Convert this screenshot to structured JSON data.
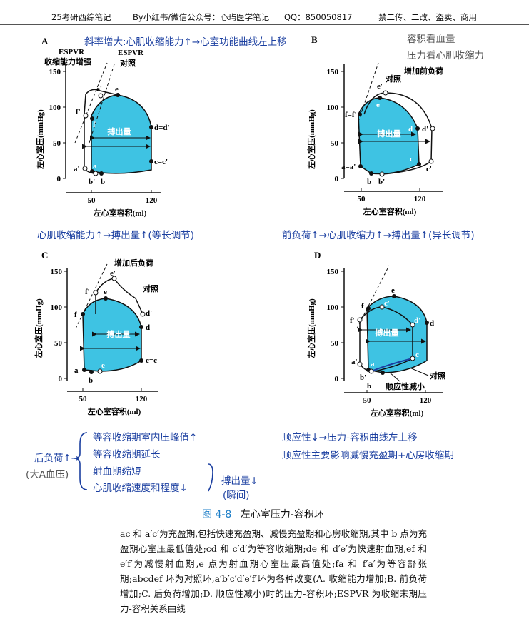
{
  "header": {
    "book": "25考研西综笔记",
    "author": "By小红书/微信公众号：心玙医学笔记",
    "qq": "QQ：850050817",
    "rights": "禁二传、二改、盗卖、商用"
  },
  "notes": {
    "a_title": "斜率增大:心肌收缩能力↑→心室功能曲线左上移",
    "b_title_1": "容积看血量",
    "b_title_2": "压力看心肌收缩力",
    "a_summary": "心肌收缩能力↑→搏出量↑(等长调节)",
    "b_summary": "前负荷↑→心肌收缩力↑→搏出量↑(异长调节)",
    "c_left_1": "后负荷↑→",
    "c_left_2": "(大A血压)",
    "c_items": [
      "等容收缩期室内压峰值↑",
      "等容收缩期延长",
      "射血期缩短",
      "心肌收缩速度和程度↓"
    ],
    "c_result_1": "搏出量↓",
    "c_result_2": "(瞬间)",
    "d_note_1": "顺应性↓→压力-容积曲线左上移",
    "d_note_2": "顺应性主要影响减慢充盈期+心房收缩期"
  },
  "panels": {
    "a": {
      "letter": "A",
      "espvr_left": "ESPVR",
      "espvr_left_2": "收缩能力增强",
      "espvr_right": "ESPVR",
      "control": "对照",
      "stroke": "搏出量",
      "points": [
        "e'",
        "e",
        "f'",
        "f",
        "d=d'",
        "c=c'",
        "a'",
        "a",
        "b'",
        "b"
      ]
    },
    "b": {
      "letter": "B",
      "control": "对照",
      "preload": "增加前负荷",
      "stroke": "搏出量",
      "points": [
        "e'",
        "e",
        "f=f'",
        "d",
        "d'",
        "c",
        "c'",
        "a=a'",
        "b",
        "b'"
      ]
    },
    "c": {
      "letter": "C",
      "afterload": "增加后负荷",
      "control": "对照",
      "stroke": "搏出量",
      "points": [
        "e'",
        "e",
        "f'",
        "f",
        "d'",
        "d",
        "c=c",
        "a",
        "e",
        "b"
      ]
    },
    "d": {
      "letter": "D",
      "stroke": "搏出量",
      "control": "对照",
      "compliance": "顺应性减小",
      "points": [
        "e",
        "f",
        "c'",
        "f'",
        "d'",
        "d",
        "a'",
        "a",
        "b'",
        "b",
        "c"
      ]
    },
    "axis": {
      "ylabel": "左心室压(mmHg)",
      "xlabel": "左心室容积(ml)",
      "yticks": [
        "150",
        "100",
        "50",
        "0"
      ],
      "xticks": [
        "50",
        "120"
      ]
    }
  },
  "caption": {
    "number": "图 4-8",
    "title": "左心室压力-容积环",
    "body": "ac 和 a′c′为充盈期,包括快速充盈期、减慢充盈期和心房收缩期,其中 b 点为充盈期心室压最低值处;cd 和 c′d′为等容收缩期;de 和 d′e′为快速射血期,ef 和 e′f′为减慢射血期,e 点为射血期心室压最高值处;fa 和 f′a′为等容舒张期;abcdef 环为对照环,a′b′c′d′e′f′环为各种改变(A. 收缩能力增加;B. 前负荷增加;C. 后负荷增加;D. 顺应性减小)时的压力-容积环;ESPVR 为收缩末期压力-容积关系曲线"
  },
  "colors": {
    "fill": "#3ec3e3",
    "blue_note": "#1b3fa0",
    "caption_num": "#1e7fc8"
  }
}
